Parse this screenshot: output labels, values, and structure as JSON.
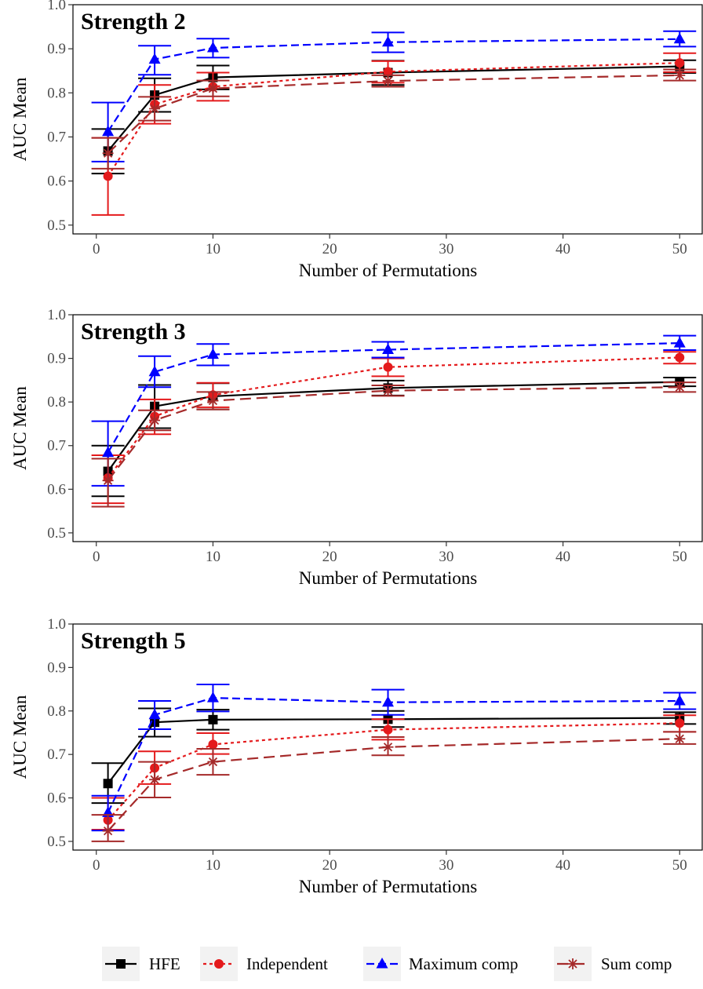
{
  "legend": {
    "position": "bottom",
    "entries": [
      {
        "key": "hfe",
        "label": "HFE"
      },
      {
        "key": "independent",
        "label": "Independent"
      },
      {
        "key": "maximum",
        "label": "Maximum comp"
      },
      {
        "key": "sum",
        "label": "Sum comp"
      }
    ]
  },
  "colors": {
    "hfe": "#000000",
    "independent": "#e41a1c",
    "maximum": "#0000ff",
    "sum": "#a52a2a",
    "legend_key_bg": "#f2f2f2"
  },
  "chart_data": [
    {
      "type": "line",
      "title": "Strength 2",
      "xlabel": "Number of Permutations",
      "ylabel": "AUC Mean",
      "xlim": [
        -2,
        52
      ],
      "ylim": [
        0.48,
        1.0
      ],
      "xticks": [
        0,
        10,
        20,
        30,
        40,
        50
      ],
      "yticks": [
        0.5,
        0.6,
        0.7,
        0.8,
        0.9,
        1.0
      ],
      "grid": false,
      "series": [
        {
          "key": "hfe",
          "name": "HFE",
          "x": [
            1,
            5,
            10,
            25,
            50
          ],
          "y": [
            0.668,
            0.795,
            0.835,
            0.846,
            0.86
          ],
          "lo": [
            0.617,
            0.757,
            0.808,
            0.818,
            0.845
          ],
          "hi": [
            0.718,
            0.833,
            0.862,
            0.873,
            0.874
          ]
        },
        {
          "key": "independent",
          "name": "Independent",
          "x": [
            1,
            5,
            10,
            25,
            50
          ],
          "y": [
            0.611,
            0.774,
            0.814,
            0.848,
            0.868
          ],
          "lo": [
            0.523,
            0.73,
            0.782,
            0.823,
            0.847
          ],
          "hi": [
            0.698,
            0.818,
            0.846,
            0.872,
            0.89
          ]
        },
        {
          "key": "maximum",
          "name": "Maximum comp",
          "x": [
            1,
            5,
            10,
            25,
            50
          ],
          "y": [
            0.712,
            0.876,
            0.902,
            0.915,
            0.922
          ],
          "lo": [
            0.644,
            0.841,
            0.88,
            0.892,
            0.905
          ],
          "hi": [
            0.778,
            0.907,
            0.923,
            0.937,
            0.94
          ]
        },
        {
          "key": "sum",
          "name": "Sum comp",
          "x": [
            1,
            5,
            10,
            25,
            50
          ],
          "y": [
            0.663,
            0.764,
            0.81,
            0.827,
            0.84
          ],
          "lo": [
            0.628,
            0.737,
            0.792,
            0.814,
            0.828
          ],
          "hi": [
            0.698,
            0.791,
            0.828,
            0.84,
            0.853
          ]
        }
      ]
    },
    {
      "type": "line",
      "title": "Strength 3",
      "xlabel": "Number of Permutations",
      "ylabel": "AUC Mean",
      "xlim": [
        -2,
        52
      ],
      "ylim": [
        0.48,
        1.0
      ],
      "xticks": [
        0,
        10,
        20,
        30,
        40,
        50
      ],
      "yticks": [
        0.5,
        0.6,
        0.7,
        0.8,
        0.9,
        1.0
      ],
      "grid": false,
      "series": [
        {
          "key": "hfe",
          "name": "HFE",
          "x": [
            1,
            5,
            10,
            25,
            50
          ],
          "y": [
            0.641,
            0.79,
            0.813,
            0.832,
            0.846
          ],
          "lo": [
            0.584,
            0.74,
            0.783,
            0.815,
            0.836
          ],
          "hi": [
            0.7,
            0.839,
            0.843,
            0.849,
            0.856
          ]
        },
        {
          "key": "independent",
          "name": "Independent",
          "x": [
            1,
            5,
            10,
            25,
            50
          ],
          "y": [
            0.626,
            0.767,
            0.816,
            0.88,
            0.902
          ],
          "lo": [
            0.568,
            0.726,
            0.788,
            0.859,
            0.888
          ],
          "hi": [
            0.678,
            0.806,
            0.844,
            0.9,
            0.915
          ]
        },
        {
          "key": "maximum",
          "name": "Maximum comp",
          "x": [
            1,
            5,
            10,
            25,
            50
          ],
          "y": [
            0.684,
            0.869,
            0.909,
            0.92,
            0.935
          ],
          "lo": [
            0.608,
            0.834,
            0.884,
            0.902,
            0.919
          ],
          "hi": [
            0.756,
            0.905,
            0.933,
            0.938,
            0.952
          ]
        },
        {
          "key": "sum",
          "name": "Sum comp",
          "x": [
            1,
            5,
            10,
            25,
            50
          ],
          "y": [
            0.62,
            0.758,
            0.803,
            0.826,
            0.834
          ],
          "lo": [
            0.56,
            0.735,
            0.783,
            0.814,
            0.823
          ],
          "hi": [
            0.67,
            0.781,
            0.823,
            0.838,
            0.845
          ]
        }
      ]
    },
    {
      "type": "line",
      "title": "Strength 5",
      "xlabel": "Number of Permutations",
      "ylabel": "AUC Mean",
      "xlim": [
        -2,
        52
      ],
      "ylim": [
        0.48,
        1.0
      ],
      "xticks": [
        0,
        10,
        20,
        30,
        40,
        50
      ],
      "yticks": [
        0.5,
        0.6,
        0.7,
        0.8,
        0.9,
        1.0
      ],
      "grid": false,
      "series": [
        {
          "key": "hfe",
          "name": "HFE",
          "x": [
            1,
            5,
            10,
            25,
            50
          ],
          "y": [
            0.633,
            0.774,
            0.78,
            0.781,
            0.784
          ],
          "lo": [
            0.588,
            0.741,
            0.757,
            0.763,
            0.77
          ],
          "hi": [
            0.68,
            0.806,
            0.803,
            0.8,
            0.797
          ]
        },
        {
          "key": "independent",
          "name": "Independent",
          "x": [
            1,
            5,
            10,
            25,
            50
          ],
          "y": [
            0.549,
            0.669,
            0.723,
            0.757,
            0.772
          ],
          "lo": [
            0.527,
            0.632,
            0.701,
            0.734,
            0.752
          ],
          "hi": [
            0.6,
            0.707,
            0.749,
            0.781,
            0.79
          ]
        },
        {
          "key": "maximum",
          "name": "Maximum comp",
          "x": [
            1,
            5,
            10,
            25,
            50
          ],
          "y": [
            0.566,
            0.791,
            0.83,
            0.82,
            0.823
          ],
          "lo": [
            0.525,
            0.758,
            0.799,
            0.791,
            0.804
          ],
          "hi": [
            0.605,
            0.823,
            0.861,
            0.849,
            0.842
          ]
        },
        {
          "key": "sum",
          "name": "Sum comp",
          "x": [
            1,
            5,
            10,
            25,
            50
          ],
          "y": [
            0.524,
            0.642,
            0.683,
            0.717,
            0.736
          ],
          "lo": [
            0.5,
            0.601,
            0.653,
            0.698,
            0.724
          ],
          "hi": [
            0.561,
            0.683,
            0.713,
            0.74,
            0.752
          ]
        }
      ]
    }
  ]
}
